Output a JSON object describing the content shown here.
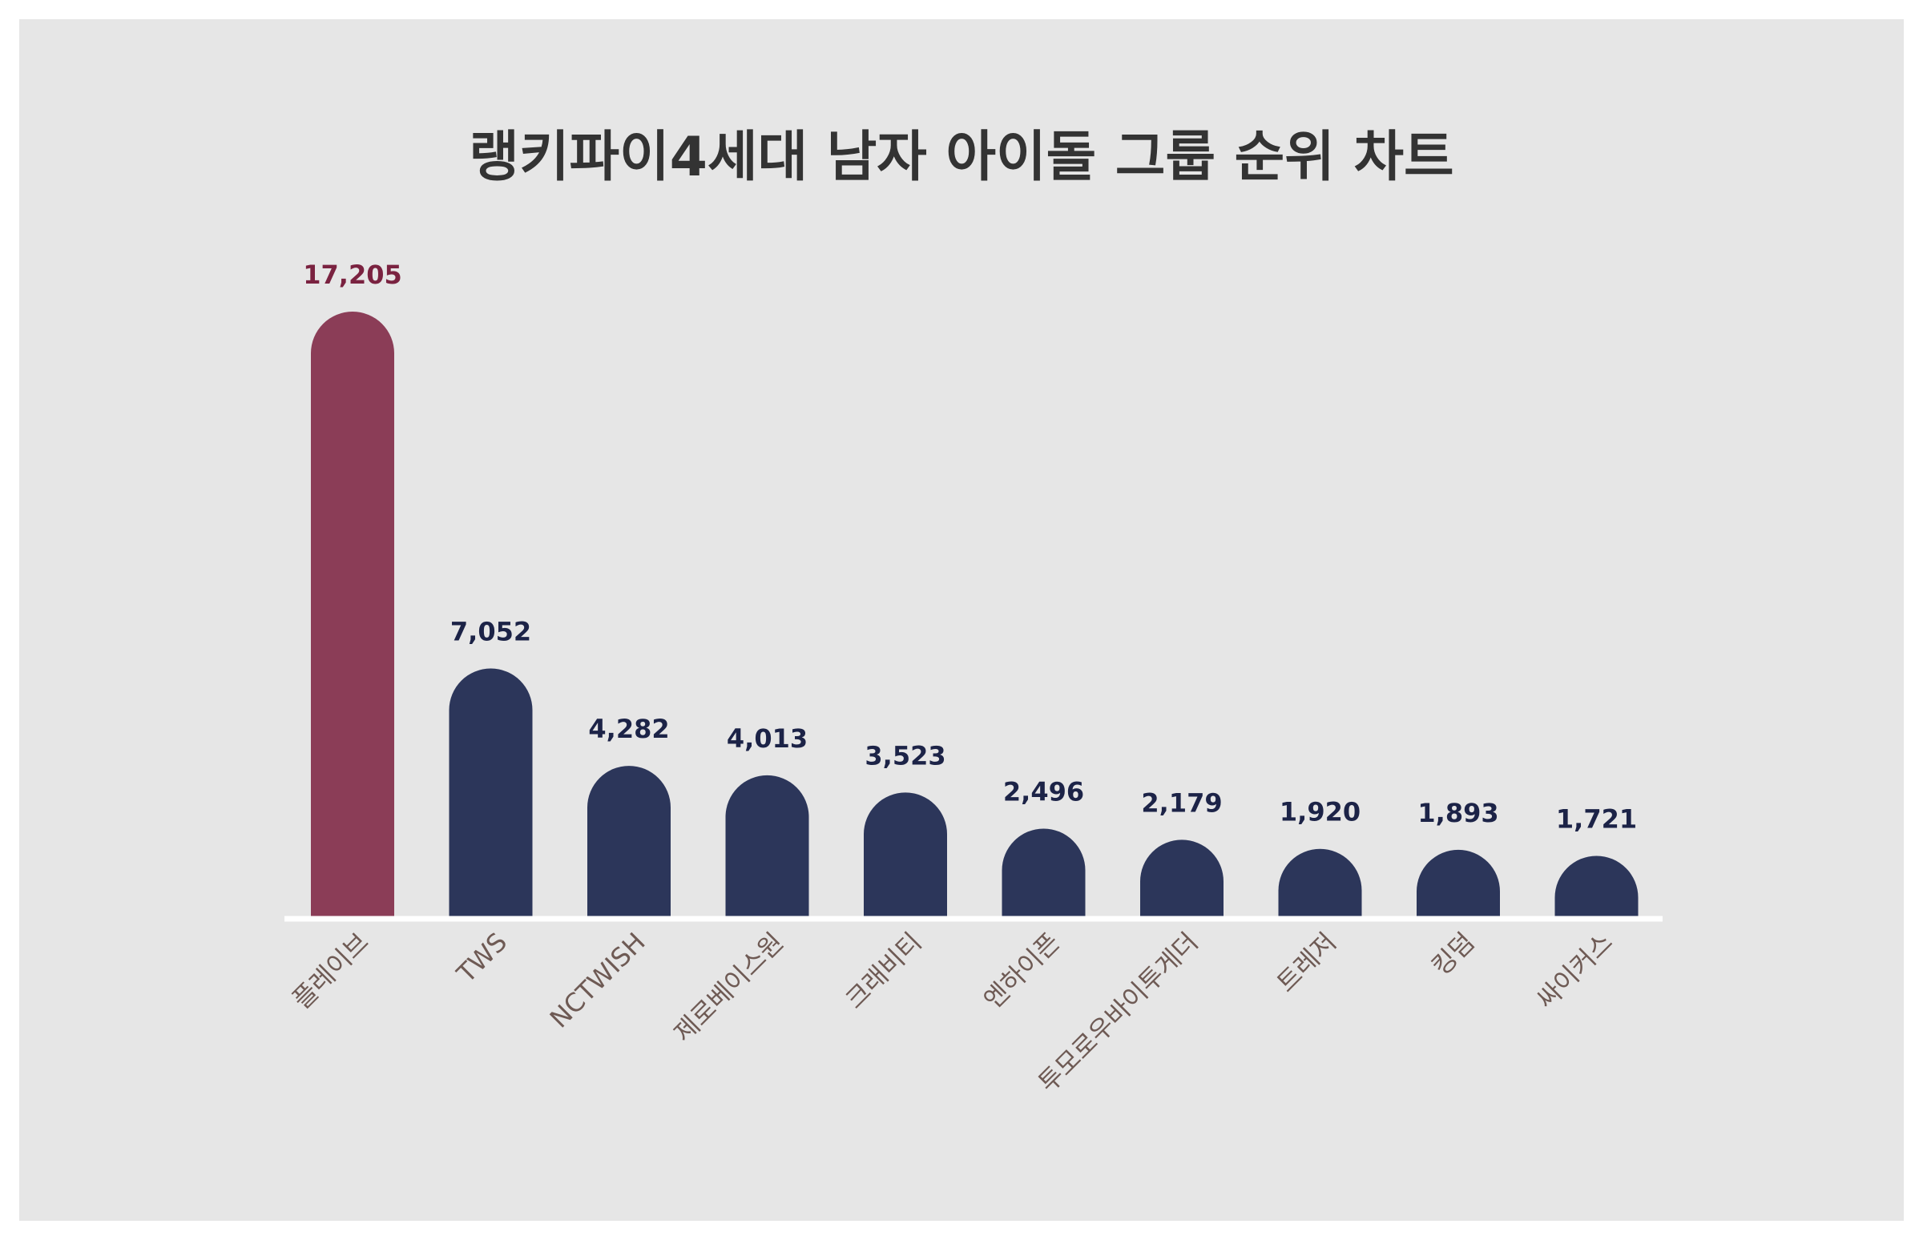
{
  "chart_data": {
    "type": "bar",
    "title": "랭키파이4세대 남자 아이돌 그룹 순위 차트",
    "xlabel": "",
    "ylabel": "",
    "ylim": [
      0,
      18000
    ],
    "grid": false,
    "categories": [
      "플레이브",
      "TWS",
      "NCTWISH",
      "제로베이스원",
      "크래비티",
      "엔하이픈",
      "투모로우바이투게더",
      "트레저",
      "킹덤",
      "싸이커스"
    ],
    "values": [
      17205,
      7052,
      4282,
      4013,
      3523,
      2496,
      2179,
      1920,
      1893,
      1721
    ],
    "value_labels": [
      "17,205",
      "7,052",
      "4,282",
      "4,013",
      "3,523",
      "2,496",
      "2,179",
      "1,920",
      "1,893",
      "1,721"
    ],
    "colors": {
      "highlight": "#8b3d57",
      "highlight_label": "#7a2240",
      "bar": "#2c365a",
      "bar_label": "#1c2347",
      "baseline": "#ffffff"
    }
  }
}
